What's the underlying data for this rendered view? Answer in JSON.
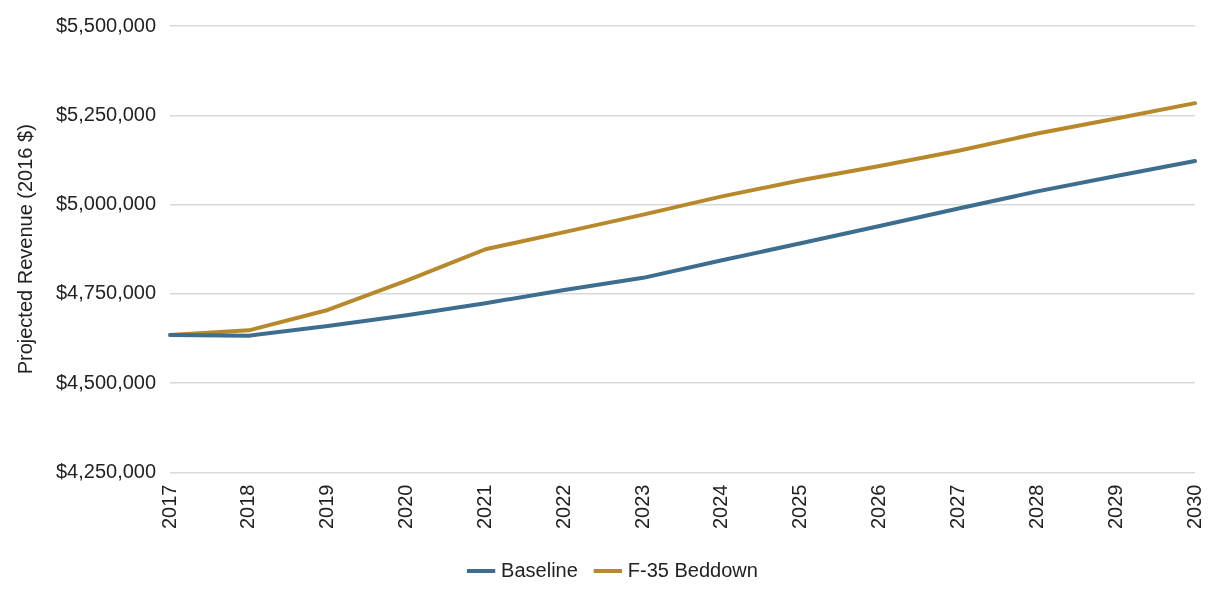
{
  "chart_data": {
    "type": "line",
    "ylabel": "Projected Revenue (2016 $)",
    "categories": [
      "2017",
      "2018",
      "2019",
      "2020",
      "2021",
      "2022",
      "2023",
      "2024",
      "2025",
      "2026",
      "2027",
      "2028",
      "2029",
      "2030"
    ],
    "series": [
      {
        "name": "Baseline",
        "color": "#3d6e8f",
        "values": [
          4635000,
          4633000,
          4660000,
          4690000,
          4724000,
          4761000,
          4795000,
          4844000,
          4892000,
          4940000,
          4989000,
          5037000,
          5080000,
          5122000
        ]
      },
      {
        "name": "F-35 Beddown",
        "color": "#b8892a",
        "values": [
          4635000,
          4648000,
          4705000,
          4787000,
          4875000,
          4923000,
          4972000,
          5023000,
          5068000,
          5108000,
          5151000,
          5199000,
          5241000,
          5284000
        ]
      }
    ],
    "ylim": [
      4250000,
      5500000
    ],
    "yticks": [
      {
        "value": 4250000,
        "label": "$4,250,000"
      },
      {
        "value": 4500000,
        "label": "$4,500,000"
      },
      {
        "value": 4750000,
        "label": "$4,750,000"
      },
      {
        "value": 5000000,
        "label": "$5,000,000"
      },
      {
        "value": 5250000,
        "label": "$5,250,000"
      },
      {
        "value": 5500000,
        "label": "$5,500,000"
      }
    ],
    "grid": "y",
    "legend": "bottom",
    "marker": "none",
    "line_style": "solid"
  }
}
